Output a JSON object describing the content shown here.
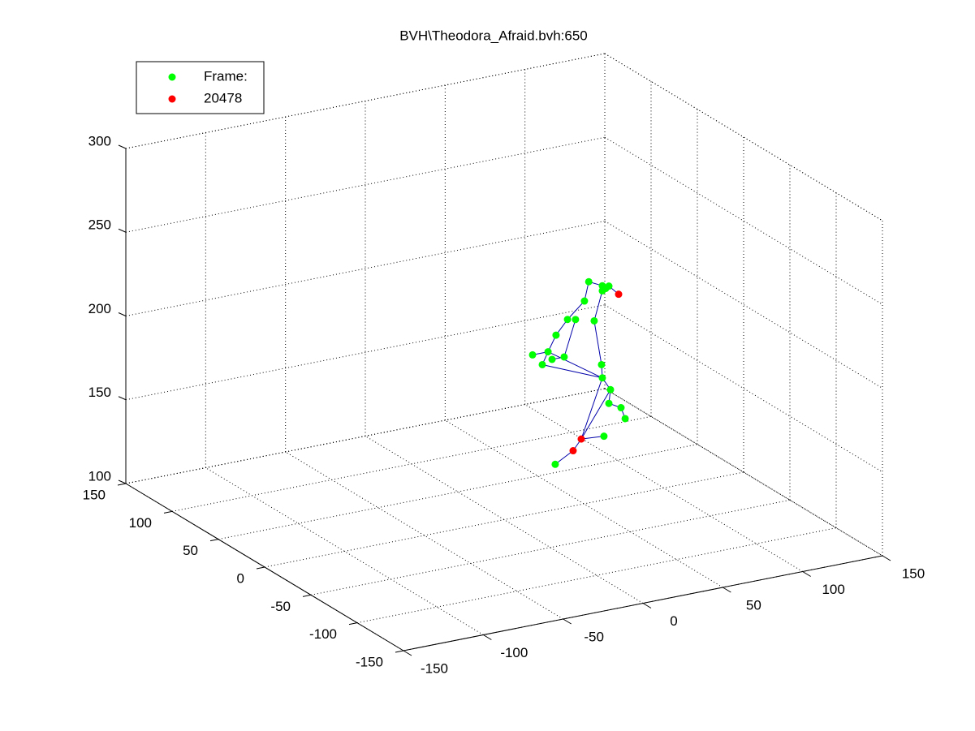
{
  "chart_data": {
    "type": "scatter3d",
    "title": "BVH\\Theodora_Afraid.bvh:650",
    "xlim": [
      -150,
      150
    ],
    "xticks": [
      -150,
      -100,
      -50,
      0,
      50,
      100,
      150
    ],
    "ylim": [
      -150,
      150
    ],
    "yticks": [
      -150,
      -100,
      -50,
      0,
      50,
      100,
      150
    ],
    "zlim": [
      100,
      300
    ],
    "zticks": [
      100,
      150,
      200,
      250,
      300
    ],
    "grid": true,
    "legend": "upper left",
    "link_color": "#0000aa",
    "series": [
      {
        "name": "Frame:",
        "color": "#00ff00",
        "x": [
          53,
          61.5,
          65.6,
          61.5,
          63.6,
          50.3,
          39.7,
          44.7,
          56.4,
          32.5,
          27.5,
          17.8,
          23.9,
          30,
          37.6,
          61,
          61.5,
          66.6,
          65.6,
          73.2,
          75.8,
          62.5,
          32
        ],
        "y": [
          0,
          0,
          0,
          0,
          0,
          0,
          0,
          0,
          0,
          0,
          0,
          0,
          0,
          0,
          0,
          0,
          0,
          0,
          0,
          0,
          0,
          0,
          0
        ],
        "z": [
          232,
          228,
          227,
          225,
          226,
          221,
          212,
          211,
          208,
          204,
          195,
          195,
          188,
          190,
          190,
          181,
          173,
          165,
          157,
          153,
          146,
          138,
          127
        ]
      },
      {
        "name": "20478",
        "color": "#ff0000",
        "x": [
          71.7,
          48.3,
          43.2
        ],
        "y": [
          0,
          0,
          0
        ],
        "z": [
          221,
          139,
          133
        ]
      }
    ],
    "links": [
      [
        0,
        1
      ],
      [
        1,
        2
      ],
      [
        0,
        5
      ],
      [
        2,
        23
      ],
      [
        3,
        8
      ],
      [
        5,
        6
      ],
      [
        6,
        9
      ],
      [
        7,
        14
      ],
      [
        9,
        10
      ],
      [
        10,
        11
      ],
      [
        10,
        12
      ],
      [
        10,
        16
      ],
      [
        12,
        16
      ],
      [
        13,
        14
      ],
      [
        8,
        15
      ],
      [
        15,
        16
      ],
      [
        16,
        17
      ],
      [
        17,
        18
      ],
      [
        18,
        19
      ],
      [
        19,
        20
      ],
      [
        17,
        24
      ],
      [
        16,
        24
      ],
      [
        24,
        21
      ],
      [
        24,
        25
      ],
      [
        25,
        22
      ],
      [
        2,
        4
      ]
    ]
  }
}
